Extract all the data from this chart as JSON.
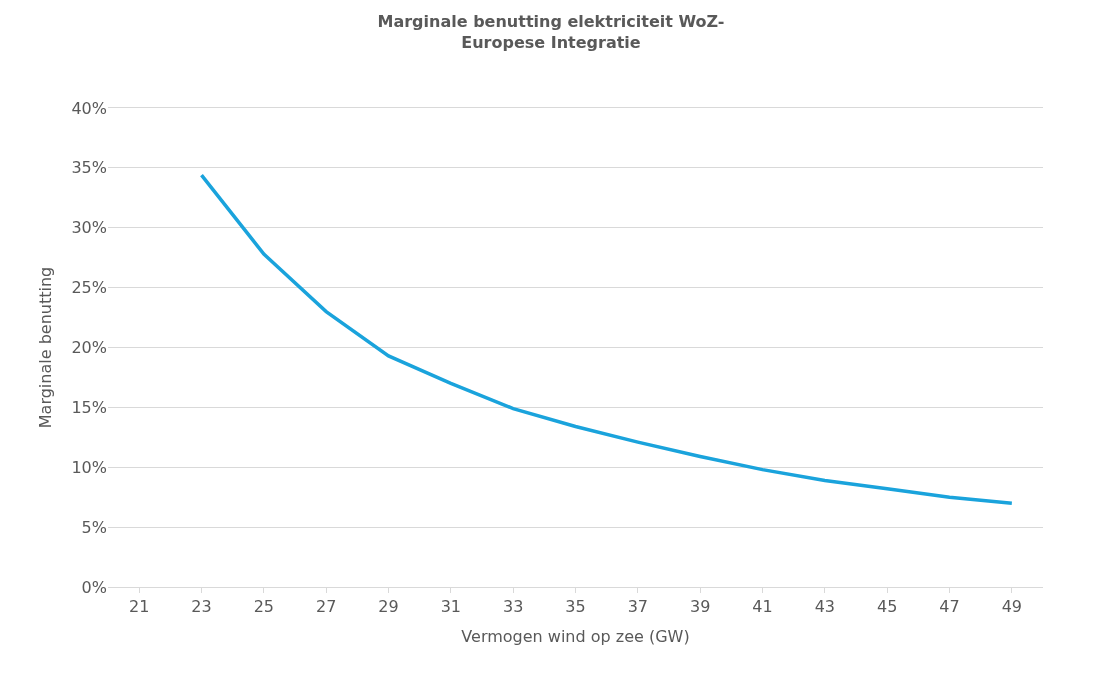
{
  "chart_data": {
    "type": "line",
    "title": "Marginale benutting elektriciteit WoZ-\nEuropese Integratie",
    "xlabel": "Vermogen wind op zee (GW)",
    "ylabel": "Marginale benutting",
    "categories": [
      "21",
      "23",
      "25",
      "27",
      "29",
      "31",
      "33",
      "35",
      "37",
      "39",
      "41",
      "43",
      "45",
      "47",
      "49"
    ],
    "series": [
      {
        "color": "#1aa3dc",
        "values": [
          null,
          34.4,
          27.8,
          23.0,
          19.3,
          17.0,
          14.9,
          13.4,
          12.1,
          10.9,
          9.8,
          8.9,
          8.2,
          7.5,
          7.0
        ]
      }
    ],
    "ylim": [
      0,
      40
    ],
    "yticks": [
      {
        "value": 0,
        "label": "0%"
      },
      {
        "value": 5,
        "label": "5%"
      },
      {
        "value": 10,
        "label": "10%"
      },
      {
        "value": 15,
        "label": "15%"
      },
      {
        "value": 20,
        "label": "20%"
      },
      {
        "value": 25,
        "label": "25%"
      },
      {
        "value": 30,
        "label": "30%"
      },
      {
        "value": 35,
        "label": "35%"
      },
      {
        "value": 40,
        "label": "40%"
      }
    ],
    "grid": "y",
    "marker": "none",
    "line_style": "solid"
  }
}
